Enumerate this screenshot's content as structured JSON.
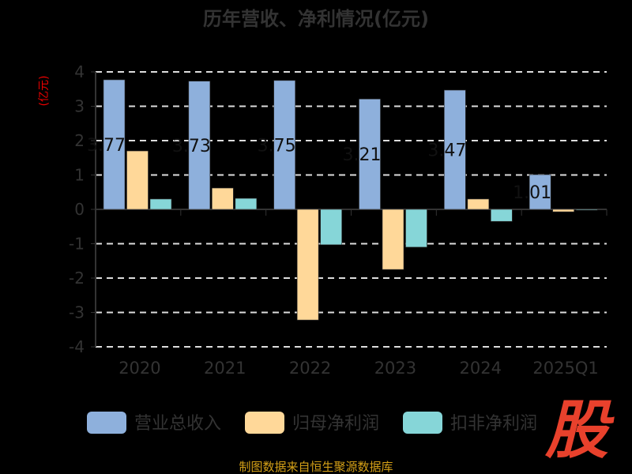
{
  "chart_data": {
    "type": "bar",
    "title": "历年营收、净利情况(亿元)",
    "ylabel": "(亿元)",
    "xlabel": "",
    "categories": [
      "2020",
      "2021",
      "2022",
      "2023",
      "2024",
      "2025Q1"
    ],
    "ylim": [
      -4,
      4
    ],
    "yticks": [
      4,
      3,
      2,
      1,
      0,
      -1,
      -2,
      -3,
      -4
    ],
    "grid": true,
    "legend_position": "bottom",
    "series": [
      {
        "name": "营业总收入",
        "color": "#8eb0dc",
        "values": [
          3.77,
          3.73,
          3.75,
          3.21,
          3.47,
          1.01
        ],
        "labels": [
          "3.77",
          "3.73",
          "3.75",
          "3.21",
          "3.47",
          "1.01"
        ]
      },
      {
        "name": "归母净利润",
        "color": "#ffd899",
        "values": [
          1.7,
          0.62,
          -3.22,
          -1.75,
          0.3,
          -0.07
        ]
      },
      {
        "name": "扣非净利润",
        "color": "#86d6d8",
        "values": [
          0.3,
          0.32,
          -1.03,
          -1.1,
          -0.35,
          -0.01
        ]
      }
    ]
  },
  "source": "制图数据来自恒生聚源数据库",
  "logo_text": "股"
}
